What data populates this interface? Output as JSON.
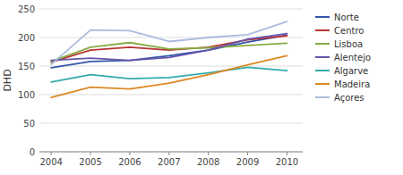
{
  "chart_data": {
    "type": "line",
    "ylabel": "DHD",
    "x": [
      2004,
      2005,
      2006,
      2007,
      2008,
      2009,
      2010
    ],
    "series": [
      {
        "name": "Norte",
        "color": "#3355AA",
        "values": [
          147,
          158,
          160,
          168,
          178,
          192,
          204
        ]
      },
      {
        "name": "Centro",
        "color": "#BB3333",
        "values": [
          157,
          178,
          183,
          178,
          183,
          196,
          203
        ]
      },
      {
        "name": "Lisboa",
        "color": "#88AA44",
        "values": [
          158,
          183,
          191,
          180,
          182,
          186,
          190
        ]
      },
      {
        "name": "Alentejo",
        "color": "#6655AA",
        "values": [
          160,
          164,
          160,
          165,
          178,
          197,
          207
        ]
      },
      {
        "name": "Algarve",
        "color": "#33AAAA",
        "values": [
          122,
          135,
          128,
          130,
          138,
          148,
          142
        ]
      },
      {
        "name": "Madeira",
        "color": "#DD8822",
        "values": [
          95,
          113,
          110,
          120,
          135,
          152,
          168
        ]
      },
      {
        "name": "Açores",
        "color": "#AABBDD",
        "values": [
          153,
          213,
          212,
          193,
          200,
          205,
          228
        ]
      }
    ],
    "xlim": [
      2003.7,
      2010.4
    ],
    "xticks": [
      2004,
      2005,
      2006,
      2007,
      2008,
      2009,
      2010
    ],
    "ylim": [
      0,
      250
    ],
    "yticks": [
      0,
      50,
      100,
      150,
      200,
      250
    ],
    "grid": "y",
    "legend": "right"
  }
}
